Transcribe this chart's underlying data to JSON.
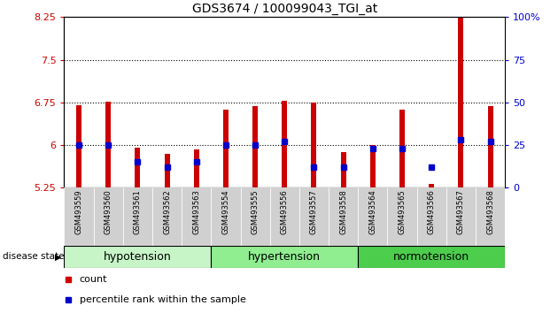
{
  "title": "GDS3674 / 100099043_TGI_at",
  "samples": [
    "GSM493559",
    "GSM493560",
    "GSM493561",
    "GSM493562",
    "GSM493563",
    "GSM493554",
    "GSM493555",
    "GSM493556",
    "GSM493557",
    "GSM493558",
    "GSM493564",
    "GSM493565",
    "GSM493566",
    "GSM493567",
    "GSM493568"
  ],
  "red_values": [
    6.7,
    6.76,
    5.96,
    5.85,
    5.92,
    6.62,
    6.68,
    6.78,
    6.75,
    5.88,
    6.01,
    6.62,
    5.32,
    8.57,
    6.68
  ],
  "blue_pct": [
    25,
    25,
    15,
    12,
    15,
    25,
    25,
    27,
    12,
    12,
    23,
    23,
    12,
    28,
    27
  ],
  "ylim_left": [
    5.25,
    8.25
  ],
  "ylim_right": [
    0,
    100
  ],
  "yticks_left": [
    5.25,
    6.0,
    6.75,
    7.5,
    8.25
  ],
  "ytick_labels_left": [
    "5.25",
    "6",
    "6.75",
    "7.5",
    "8.25"
  ],
  "yticks_right_vals": [
    0,
    25,
    50,
    75,
    100
  ],
  "ytick_labels_right": [
    "0",
    "25",
    "50",
    "75",
    "100%"
  ],
  "hlines": [
    6.0,
    6.75,
    7.5
  ],
  "bar_bottom": 5.25,
  "groups": [
    {
      "label": "hypotension",
      "start": 0,
      "end": 5,
      "color": "#c8f5c8"
    },
    {
      "label": "hypertension",
      "start": 5,
      "end": 10,
      "color": "#90ee90"
    },
    {
      "label": "normotension",
      "start": 10,
      "end": 15,
      "color": "#4cce4c"
    }
  ],
  "red_color": "#cc0000",
  "blue_color": "#0000cc",
  "bar_width": 0.18,
  "tick_bg_color": "#d0d0d0",
  "title_fontsize": 10,
  "axis_fontsize": 8,
  "legend_count": "count",
  "legend_percentile": "percentile rank within the sample"
}
